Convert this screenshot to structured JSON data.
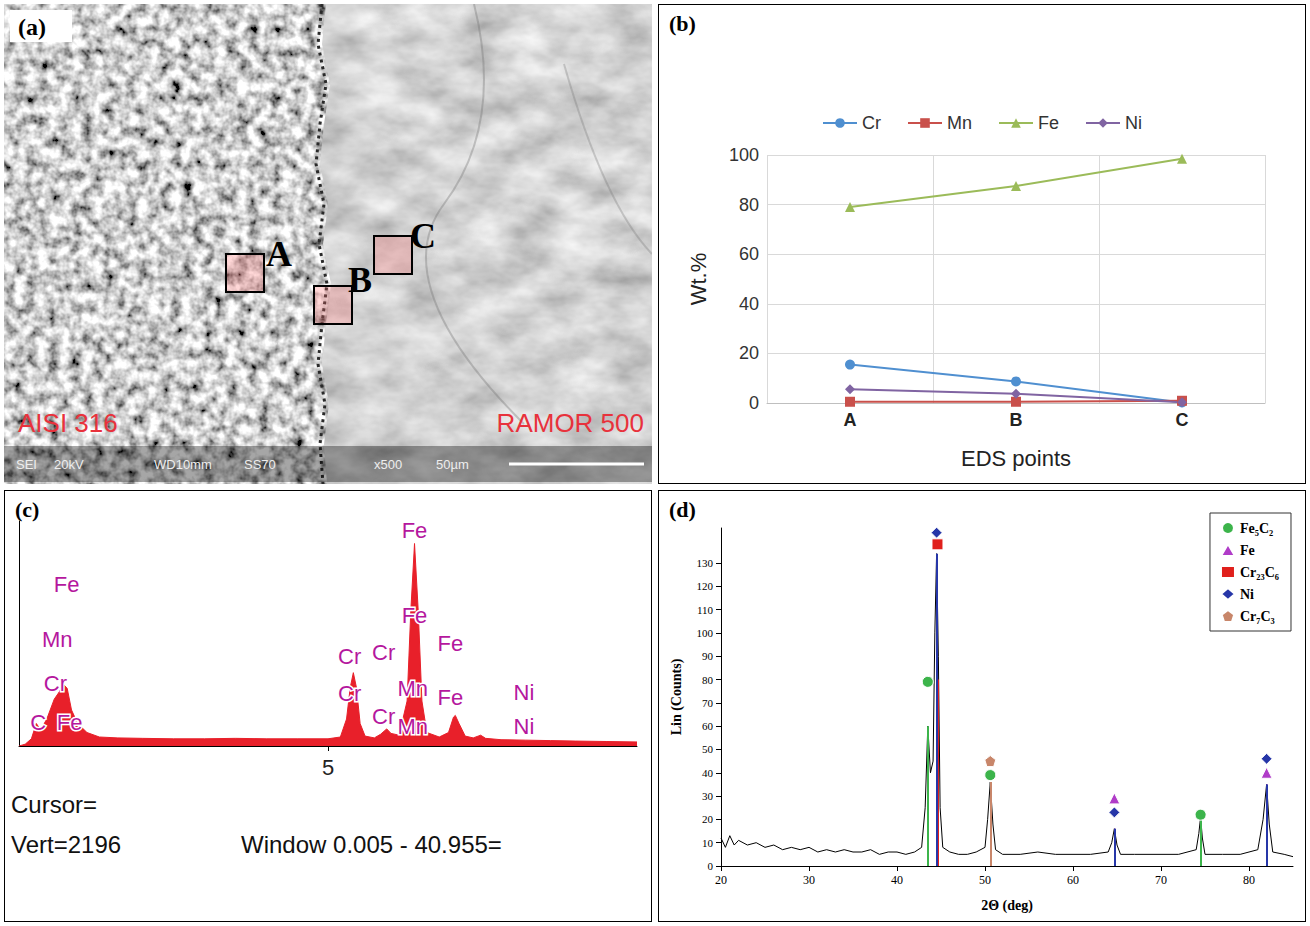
{
  "micrograph": {
    "panel": "(a)",
    "regions": [
      "AISI 316",
      "RAMOR 500"
    ],
    "points": [
      "A",
      "B",
      "C"
    ],
    "info_bar": [
      "SEI",
      "20kV",
      "WD10mm",
      "SS70",
      "x500",
      "50µm"
    ]
  },
  "chart_data": [
    {
      "panel": "(b)",
      "type": "line",
      "categories": [
        "A",
        "B",
        "C"
      ],
      "xlabel": "EDS points",
      "ylabel": "Wt.%",
      "ylim": [
        0,
        100
      ],
      "yticks": [
        0,
        20,
        40,
        60,
        80,
        100
      ],
      "grid": true,
      "legend": "top",
      "series": [
        {
          "name": "Cr",
          "color": "#4f8fd0",
          "marker": "circle",
          "values": [
            15.5,
            8.7,
            0.2
          ]
        },
        {
          "name": "Mn",
          "color": "#c9504b",
          "marker": "square",
          "values": [
            0.5,
            0.5,
            0.9
          ]
        },
        {
          "name": "Fe",
          "color": "#9bbb59",
          "marker": "triangle",
          "values": [
            79,
            87.5,
            98.5
          ]
        },
        {
          "name": "Ni",
          "color": "#8064a2",
          "marker": "diamond",
          "values": [
            5.5,
            3.7,
            0.3
          ]
        }
      ]
    },
    {
      "panel": "(c)",
      "type": "area",
      "xlim": [
        0,
        10
      ],
      "xticks": [
        5
      ],
      "ylim": [
        0,
        2500
      ],
      "tick_labels": "x",
      "color": "#e8202a",
      "x": [
        0,
        0.1,
        0.2,
        0.28,
        0.35,
        0.45,
        0.57,
        0.65,
        0.72,
        0.78,
        0.85,
        0.95,
        1.1,
        1.3,
        1.6,
        2.0,
        2.5,
        3.0,
        3.5,
        4.0,
        4.5,
        5.0,
        5.2,
        5.3,
        5.36,
        5.41,
        5.46,
        5.52,
        5.6,
        5.75,
        5.85,
        5.95,
        6.02,
        6.15,
        6.28,
        6.34,
        6.4,
        6.46,
        6.52,
        6.6,
        6.8,
        6.95,
        7.03,
        7.06,
        7.12,
        7.22,
        7.35,
        7.47,
        7.55,
        7.8,
        8.2,
        8.6,
        9.0,
        9.5,
        10.0
      ],
      "values": [
        0,
        20,
        80,
        250,
        180,
        300,
        520,
        600,
        685,
        640,
        400,
        250,
        150,
        100,
        90,
        85,
        80,
        80,
        85,
        80,
        80,
        80,
        100,
        300,
        650,
        815,
        650,
        250,
        110,
        90,
        130,
        190,
        140,
        120,
        500,
        1500,
        2250,
        1500,
        500,
        150,
        100,
        150,
        320,
        340,
        250,
        110,
        90,
        120,
        85,
        70,
        65,
        60,
        55,
        50,
        45
      ],
      "annotations": [
        {
          "text": "Fe",
          "x": 0.77,
          "y": 1800
        },
        {
          "text": "Mn",
          "x": 0.62,
          "y": 1180
        },
        {
          "text": "Cr",
          "x": 0.59,
          "y": 700
        },
        {
          "text": "C",
          "x": 0.31,
          "y": 260
        },
        {
          "text": "Fe",
          "x": 0.82,
          "y": 260
        },
        {
          "text": "Cr",
          "x": 5.35,
          "y": 1000
        },
        {
          "text": "Cr",
          "x": 5.35,
          "y": 580
        },
        {
          "text": "Cr",
          "x": 5.9,
          "y": 1040
        },
        {
          "text": "Cr",
          "x": 5.9,
          "y": 330
        },
        {
          "text": "Fe",
          "x": 6.4,
          "y": 2400
        },
        {
          "text": "Fe",
          "x": 6.4,
          "y": 1450
        },
        {
          "text": "Mn",
          "x": 6.37,
          "y": 640
        },
        {
          "text": "Mn",
          "x": 6.37,
          "y": 220
        },
        {
          "text": "Fe",
          "x": 6.98,
          "y": 1140
        },
        {
          "text": "Fe",
          "x": 6.98,
          "y": 540
        },
        {
          "text": "Ni",
          "x": 8.17,
          "y": 600
        },
        {
          "text": "Ni",
          "x": 8.17,
          "y": 220
        }
      ],
      "footer": [
        [
          "Cursor="
        ],
        [
          "Vert=2196",
          "Window 0.005 - 40.955="
        ]
      ]
    },
    {
      "panel": "(d)",
      "type": "line",
      "xlabel": "2Θ (deg)",
      "ylabel": "Lin (Counts)",
      "xlim": [
        20,
        85
      ],
      "xticks": [
        20,
        30,
        40,
        50,
        60,
        70,
        80
      ],
      "ylim": [
        0,
        145
      ],
      "yticks": [
        0,
        10,
        20,
        30,
        40,
        50,
        60,
        70,
        80,
        90,
        100,
        110,
        120,
        130
      ],
      "legend": "upper right",
      "series": [
        {
          "type": "line",
          "color": "#000000",
          "x": [
            20,
            20.5,
            21,
            21.5,
            22,
            23,
            24,
            25,
            26,
            27,
            28,
            29,
            30,
            31,
            32,
            33,
            34,
            35,
            36,
            37,
            38,
            39,
            40,
            41,
            42,
            42.8,
            43.2,
            43.5,
            43.8,
            44.1,
            44.3,
            44.5,
            44.7,
            44.9,
            45.2,
            46,
            47,
            48,
            49,
            50,
            50.3,
            50.6,
            50.9,
            51.2,
            52,
            54,
            56,
            58,
            60,
            62,
            64,
            64.4,
            64.7,
            65,
            65.4,
            67,
            70,
            72,
            74,
            74.3,
            74.5,
            74.7,
            75,
            77,
            79,
            81,
            81.6,
            82,
            82.3,
            82.7,
            84,
            85
          ],
          "values": [
            12,
            8,
            13,
            9,
            11,
            9,
            10,
            8,
            9,
            7,
            8,
            7,
            8,
            6,
            7,
            6,
            7,
            6,
            6,
            7,
            5,
            6,
            6,
            5,
            6,
            8,
            25,
            60,
            40,
            45,
            100,
            134,
            90,
            25,
            8,
            6,
            5,
            5,
            6,
            8,
            20,
            36,
            18,
            7,
            5,
            5,
            6,
            5,
            5,
            5,
            6,
            10,
            16,
            9,
            5,
            5,
            5,
            5,
            7,
            14,
            21,
            12,
            5,
            5,
            5,
            7,
            20,
            35,
            18,
            6,
            5,
            4
          ]
        },
        {
          "type": "stick",
          "name": "Fe₅C₂",
          "color": "#3cb44b",
          "marker": "circle",
          "x": [
            43.5,
            50.6,
            74.5
          ],
          "values": [
            60,
            36,
            20
          ],
          "marker_values": [
            79,
            39,
            22
          ]
        },
        {
          "type": "stick",
          "name": "Fe",
          "color": "#b03cc8",
          "marker": "triangle",
          "x": [
            64.7,
            82.0
          ],
          "values": [
            16,
            35
          ],
          "marker_values": [
            29,
            40
          ]
        },
        {
          "type": "stick",
          "name": "Cr₂₃C₆",
          "color": "#e0201c",
          "marker": "square",
          "x": [
            44.6
          ],
          "values": [
            80
          ],
          "marker_values": [
            138
          ]
        },
        {
          "type": "stick",
          "name": "Ni",
          "color": "#2636a8",
          "marker": "diamond",
          "x": [
            44.5,
            64.7,
            82.0
          ],
          "values": [
            134,
            16,
            35
          ],
          "marker_values": [
            143,
            23,
            46
          ]
        },
        {
          "type": "stick",
          "name": "Cr₇C₃",
          "color": "#c8866a",
          "marker": "pentagon",
          "x": [
            50.6
          ],
          "values": [
            36
          ],
          "marker_values": [
            45
          ]
        }
      ]
    }
  ]
}
